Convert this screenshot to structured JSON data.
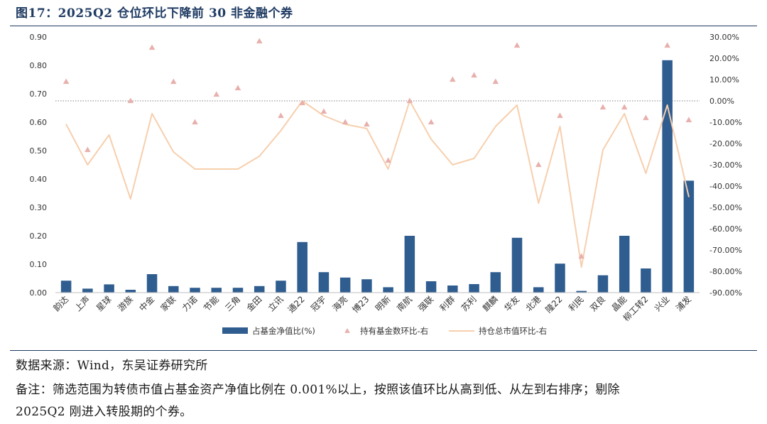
{
  "title": "图17：2025Q2 仓位环比下降前 30 非金融个券",
  "source_text": "数据来源：Wind，东吴证券研究所",
  "note_line1": "备注：筛选范围为转债市值占基金资产净值比例在 0.001%以上，按照该值环比从高到低、从左到右排序；剔除",
  "note_line2": "2025Q2 刚进入转股期的个券。",
  "colors": {
    "bar": "#2f5d8f",
    "marker": "#e8b0ac",
    "line": "#f7cfae",
    "title": "#1f3b63"
  },
  "chart_data": {
    "type": "bar",
    "categories": [
      "韵达",
      "上声",
      "星球",
      "游族",
      "中金",
      "家联",
      "力诺",
      "节能",
      "三角",
      "金田",
      "立讯",
      "通22",
      "冠宇",
      "海亮",
      "博23",
      "明新",
      "南航",
      "强联",
      "利群",
      "苏利",
      "麒麟",
      "华友",
      "北港",
      "隆22",
      "利民",
      "双良",
      "晶能",
      "柳工转2",
      "兴业",
      "浦发"
    ],
    "series": [
      {
        "name": "占基金净值比(%)",
        "axis": "left",
        "kind": "bar",
        "values": [
          0.042,
          0.014,
          0.029,
          0.01,
          0.065,
          0.023,
          0.017,
          0.017,
          0.017,
          0.023,
          0.042,
          0.178,
          0.072,
          0.053,
          0.047,
          0.019,
          0.2,
          0.04,
          0.025,
          0.03,
          0.072,
          0.193,
          0.019,
          0.102,
          0.006,
          0.061,
          0.2,
          0.085,
          0.818,
          0.394
        ]
      },
      {
        "name": "持有基金数环比-右",
        "axis": "right",
        "kind": "marker",
        "values": [
          9,
          -23,
          null,
          0,
          25,
          9,
          -10,
          3,
          6,
          28,
          -7,
          -1,
          -5,
          -10,
          -11,
          -28,
          0,
          -10,
          10,
          12,
          9,
          26,
          -30,
          -7,
          -73,
          -3,
          -3,
          -8,
          26,
          -9
        ]
      },
      {
        "name": "持仓总市值环比-右",
        "axis": "right",
        "kind": "line",
        "values": [
          -11,
          -30,
          -16,
          -46,
          -6,
          -24,
          -32,
          -32,
          -32,
          -26,
          -14,
          0,
          -7,
          -11,
          -13,
          -32,
          0,
          -18,
          -30,
          -27,
          -12,
          -2,
          -48,
          -12,
          -78,
          -23,
          -6,
          -34,
          -2,
          -45
        ]
      }
    ],
    "y_left": {
      "min": 0,
      "max": 0.9,
      "ticks": [
        0.0,
        0.1,
        0.2,
        0.3,
        0.4,
        0.5,
        0.6,
        0.7,
        0.8,
        0.9
      ],
      "tick_labels": [
        "0.00",
        "0.10",
        "0.20",
        "0.30",
        "0.40",
        "0.50",
        "0.60",
        "0.70",
        "0.80",
        "0.90"
      ]
    },
    "y_right": {
      "min": -90,
      "max": 30,
      "ticks": [
        30,
        20,
        10,
        0,
        -10,
        -20,
        -30,
        -40,
        -50,
        -60,
        -70,
        -80,
        -90
      ],
      "tick_labels": [
        "30.00%",
        "20.00%",
        "10.00%",
        "0.00%",
        "-10.00%",
        "-20.00%",
        "-30.00%",
        "-40.00%",
        "-50.00%",
        "-60.00%",
        "-70.00%",
        "-80.00%",
        "-90.00%"
      ]
    },
    "reference_line": {
      "axis": "right",
      "value": 0,
      "style": "dotted"
    },
    "legend_position": "bottom"
  }
}
